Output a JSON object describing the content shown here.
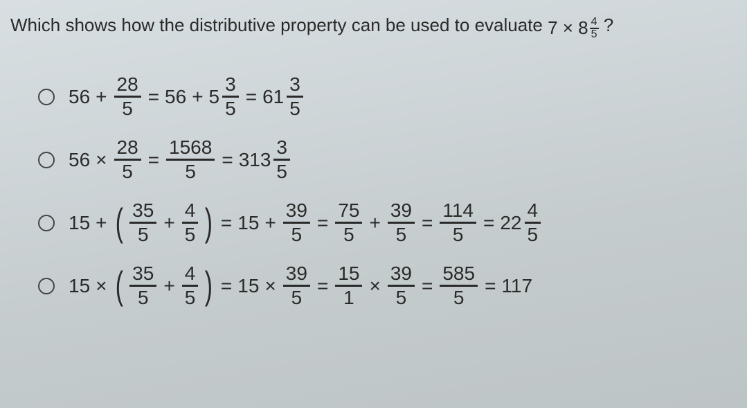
{
  "question": {
    "text_before": "Which shows how the distributive property can be used to evaluate ",
    "expression_base": "7 × 8",
    "expression_frac_num": "4",
    "expression_frac_den": "5",
    "text_after": "?"
  },
  "options": [
    {
      "tokens": [
        {
          "t": "text",
          "v": "56"
        },
        {
          "t": "op",
          "v": "+"
        },
        {
          "t": "frac",
          "num": "28",
          "den": "5"
        },
        {
          "t": "op",
          "v": "="
        },
        {
          "t": "text",
          "v": "56"
        },
        {
          "t": "op",
          "v": "+"
        },
        {
          "t": "mixed",
          "whole": "5",
          "num": "3",
          "den": "5"
        },
        {
          "t": "op",
          "v": "="
        },
        {
          "t": "mixed",
          "whole": "61",
          "num": "3",
          "den": "5"
        }
      ]
    },
    {
      "tokens": [
        {
          "t": "text",
          "v": "56"
        },
        {
          "t": "op",
          "v": "×"
        },
        {
          "t": "frac",
          "num": "28",
          "den": "5"
        },
        {
          "t": "op",
          "v": "="
        },
        {
          "t": "frac",
          "num": "1568",
          "den": "5"
        },
        {
          "t": "op",
          "v": "="
        },
        {
          "t": "mixed",
          "whole": "313",
          "num": "3",
          "den": "5"
        }
      ]
    },
    {
      "tokens": [
        {
          "t": "text",
          "v": "15"
        },
        {
          "t": "op",
          "v": "+"
        },
        {
          "t": "lparen"
        },
        {
          "t": "frac",
          "num": "35",
          "den": "5"
        },
        {
          "t": "op",
          "v": "+"
        },
        {
          "t": "frac",
          "num": "4",
          "den": "5"
        },
        {
          "t": "rparen"
        },
        {
          "t": "op",
          "v": "="
        },
        {
          "t": "text",
          "v": "15"
        },
        {
          "t": "op",
          "v": "+"
        },
        {
          "t": "frac",
          "num": "39",
          "den": "5"
        },
        {
          "t": "op",
          "v": "="
        },
        {
          "t": "frac",
          "num": "75",
          "den": "5"
        },
        {
          "t": "op",
          "v": "+"
        },
        {
          "t": "frac",
          "num": "39",
          "den": "5"
        },
        {
          "t": "op",
          "v": "="
        },
        {
          "t": "frac",
          "num": "114",
          "den": "5"
        },
        {
          "t": "op",
          "v": "="
        },
        {
          "t": "mixed",
          "whole": "22",
          "num": "4",
          "den": "5"
        }
      ]
    },
    {
      "tokens": [
        {
          "t": "text",
          "v": "15"
        },
        {
          "t": "op",
          "v": "×"
        },
        {
          "t": "lparen"
        },
        {
          "t": "frac",
          "num": "35",
          "den": "5"
        },
        {
          "t": "op",
          "v": "+"
        },
        {
          "t": "frac",
          "num": "4",
          "den": "5"
        },
        {
          "t": "rparen"
        },
        {
          "t": "op",
          "v": "="
        },
        {
          "t": "text",
          "v": "15"
        },
        {
          "t": "op",
          "v": "×"
        },
        {
          "t": "frac",
          "num": "39",
          "den": "5"
        },
        {
          "t": "op",
          "v": "="
        },
        {
          "t": "frac",
          "num": "15",
          "den": "1"
        },
        {
          "t": "op",
          "v": "×"
        },
        {
          "t": "frac",
          "num": "39",
          "den": "5"
        },
        {
          "t": "op",
          "v": "="
        },
        {
          "t": "frac",
          "num": "585",
          "den": "5"
        },
        {
          "t": "op",
          "v": "="
        },
        {
          "t": "text",
          "v": "117"
        }
      ]
    }
  ]
}
